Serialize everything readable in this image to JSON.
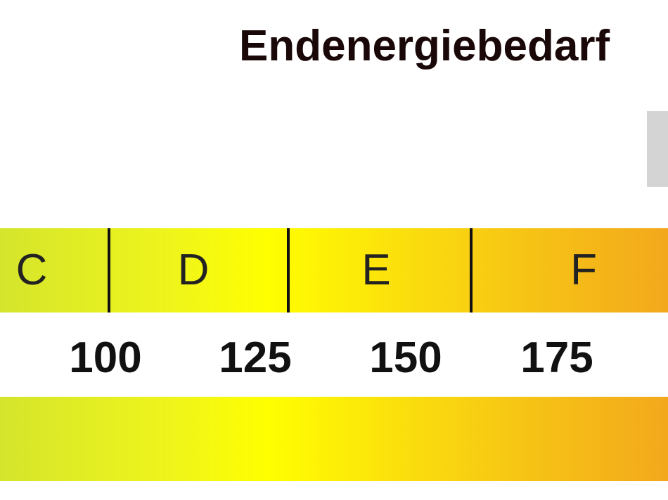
{
  "header": {
    "title": "Endenergiebedarf"
  },
  "classes": [
    "C",
    "D",
    "E",
    "F"
  ],
  "scale": [
    100,
    125,
    150,
    175
  ]
}
